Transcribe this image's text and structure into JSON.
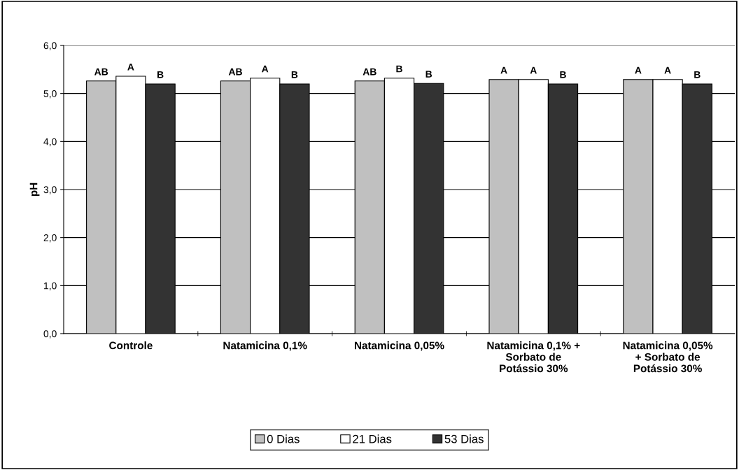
{
  "chart_data": {
    "type": "bar",
    "ylabel": "pH",
    "categories": [
      "Controle",
      "Natamicina 0,1%",
      "Natamicina 0,05%",
      "Natamicina 0,1% +\nSorbato de\nPotássio 30%",
      "Natamicina 0,05%\n+ Sorbato de\nPotássio 30%"
    ],
    "series": [
      {
        "name": "0 Dias",
        "color": "#c0c0c0",
        "values": [
          5.26,
          5.26,
          5.26,
          5.29,
          5.29
        ],
        "value_labels": [
          "AB",
          "AB",
          "AB",
          "A",
          "A"
        ]
      },
      {
        "name": "21 Dias",
        "color": "#ffffff",
        "values": [
          5.36,
          5.32,
          5.32,
          5.29,
          5.29
        ],
        "value_labels": [
          "A",
          "A",
          "B",
          "A",
          "A"
        ]
      },
      {
        "name": "53 Dias",
        "color": "#333333",
        "values": [
          5.2,
          5.2,
          5.21,
          5.2,
          5.2
        ],
        "value_labels": [
          "B",
          "B",
          "B",
          "B",
          "B"
        ]
      }
    ],
    "ylim": [
      0,
      6
    ],
    "yticks": [
      {
        "value": 0,
        "label": "0,0"
      },
      {
        "value": 1,
        "label": "1,0"
      },
      {
        "value": 2,
        "label": "2,0"
      },
      {
        "value": 3,
        "label": "3,0"
      },
      {
        "value": 4,
        "label": "4,0"
      },
      {
        "value": 5,
        "label": "5,0"
      },
      {
        "value": 6,
        "label": "6,0"
      }
    ],
    "grid": "y",
    "legend": "bottom"
  }
}
